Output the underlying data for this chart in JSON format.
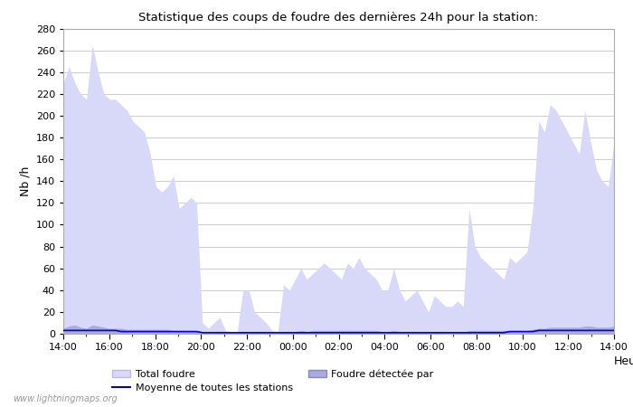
{
  "title": "Statistique des coups de foudre des dernières 24h pour la station:",
  "xlabel": "Heure",
  "ylabel": "Nb /h",
  "xlim": [
    0,
    24
  ],
  "ylim": [
    0,
    280
  ],
  "yticks": [
    0,
    20,
    40,
    60,
    80,
    100,
    120,
    140,
    160,
    180,
    200,
    220,
    240,
    260,
    280
  ],
  "xtick_labels": [
    "14:00",
    "16:00",
    "18:00",
    "20:00",
    "22:00",
    "00:00",
    "02:00",
    "04:00",
    "06:00",
    "08:00",
    "10:00",
    "12:00",
    "14:00"
  ],
  "xtick_positions": [
    0,
    2,
    4,
    6,
    8,
    10,
    12,
    14,
    16,
    18,
    20,
    22,
    24
  ],
  "fill_color_total": "#d8d8f8",
  "fill_color_detectee": "#aaaadd",
  "line_color": "#0000bb",
  "background_color": "#ffffff",
  "grid_color": "#cccccc",
  "watermark": "www.lightningmaps.org",
  "legend1": "Total foudre",
  "legend2": "Foudre détectée par",
  "legend3": "Moyenne de toutes les stations",
  "total_foudre": [
    230,
    245,
    230,
    220,
    215,
    265,
    240,
    220,
    215,
    215,
    210,
    205,
    195,
    190,
    185,
    165,
    135,
    130,
    135,
    145,
    115,
    120,
    125,
    120,
    10,
    5,
    10,
    15,
    3,
    2,
    2,
    40,
    40,
    20,
    15,
    10,
    3,
    2,
    45,
    40,
    50,
    60,
    50,
    55,
    60,
    65,
    60,
    55,
    50,
    65,
    60,
    70,
    60,
    55,
    50,
    40,
    40,
    60,
    40,
    30,
    35,
    40,
    30,
    20,
    35,
    30,
    25,
    25,
    30,
    25,
    115,
    80,
    70,
    65,
    60,
    55,
    50,
    70,
    65,
    70,
    75,
    115,
    195,
    185,
    210,
    205,
    195,
    185,
    175,
    165,
    205,
    175,
    150,
    140,
    135,
    175
  ],
  "foudre_detectee": [
    5,
    7,
    8,
    6,
    5,
    8,
    7,
    6,
    5,
    5,
    5,
    4,
    4,
    4,
    4,
    4,
    4,
    4,
    4,
    3,
    3,
    3,
    3,
    3,
    2,
    1,
    1,
    2,
    2,
    1,
    1,
    2,
    2,
    2,
    2,
    1,
    1,
    1,
    2,
    2,
    2,
    3,
    2,
    3,
    3,
    3,
    3,
    3,
    3,
    3,
    3,
    3,
    3,
    3,
    3,
    2,
    2,
    3,
    2,
    2,
    2,
    2,
    2,
    1,
    2,
    2,
    1,
    1,
    2,
    1,
    3,
    3,
    3,
    3,
    3,
    3,
    3,
    3,
    3,
    3,
    3,
    4,
    5,
    5,
    6,
    6,
    6,
    6,
    6,
    6,
    7,
    7,
    6,
    6,
    6,
    7
  ],
  "moyenne": [
    3,
    3,
    3,
    3,
    3,
    3,
    3,
    3,
    3,
    3,
    2,
    2,
    2,
    2,
    2,
    2,
    2,
    2,
    2,
    2,
    2,
    2,
    2,
    2,
    1,
    1,
    1,
    1,
    1,
    1,
    1,
    1,
    1,
    1,
    1,
    1,
    1,
    1,
    1,
    1,
    1,
    1,
    1,
    1,
    1,
    1,
    1,
    1,
    1,
    1,
    1,
    1,
    1,
    1,
    1,
    1,
    1,
    1,
    1,
    1,
    1,
    1,
    1,
    1,
    1,
    1,
    1,
    1,
    1,
    1,
    1,
    1,
    1,
    1,
    1,
    1,
    1,
    2,
    2,
    2,
    2,
    2,
    3,
    3,
    3,
    3,
    3,
    3,
    3,
    3,
    3,
    3,
    3,
    3,
    3,
    3
  ]
}
